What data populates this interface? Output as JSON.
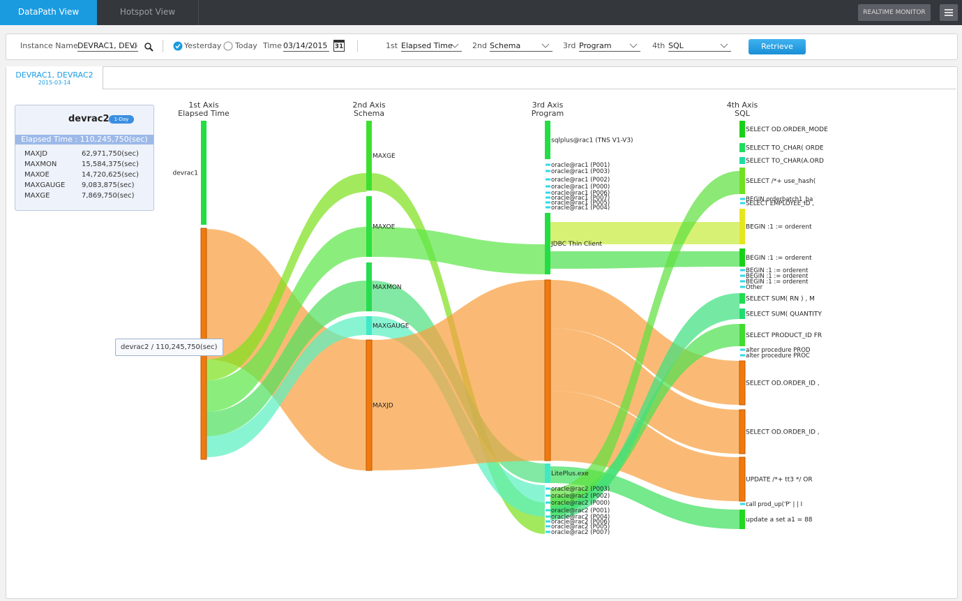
{
  "nav": {
    "tabs": [
      "DataPath View",
      "Hotspot View"
    ],
    "realtime": "REALTIME MONITOR"
  },
  "filters": {
    "instance_label": "Instance Name",
    "instance_value": "DEVRAC1, DEVI",
    "yesterday": "Yesterday",
    "today": "Today",
    "time_label": "Time",
    "date": "03/14/2015",
    "calendar_day": "31",
    "axes": [
      {
        "ordinal": "1st",
        "value": "Elapsed Time"
      },
      {
        "ordinal": "2nd",
        "value": "Schema"
      },
      {
        "ordinal": "3rd",
        "value": "Program"
      },
      {
        "ordinal": "4th",
        "value": "SQL"
      }
    ],
    "retrieve": "Retrieve"
  },
  "tab": {
    "title": "DEVRAC1, DEVRAC2",
    "date": "2015-03-14"
  },
  "card": {
    "name": "devrac2",
    "badge": "1-Day",
    "total": "Elapsed Time : 110,245,750(sec)",
    "rows": [
      [
        "MAXJD",
        "62,971,750(sec)"
      ],
      [
        "MAXMON",
        "15,584,375(sec)"
      ],
      [
        "MAXOE",
        "14,720,625(sec)"
      ],
      [
        "MAXGAUGE",
        "9,083,875(sec)"
      ],
      [
        "MAXGE",
        "7,869,750(sec)"
      ]
    ]
  },
  "tooltip": "devrac2 / 110,245,750(sec)",
  "sankey": {
    "axes": [
      {
        "title": "1st Axis",
        "subtitle": "Elapsed Time",
        "nodes": [
          "devrac1",
          null
        ]
      },
      {
        "title": "2nd Axis",
        "subtitle": "Schema",
        "nodes": [
          "MAXGE",
          "MAXOE",
          "MAXMON",
          "MAXGAUGE",
          "MAXJD"
        ]
      },
      {
        "title": "3rd Axis",
        "subtitle": "Program",
        "nodes": [
          "sqlplus@rac1 (TNS V1-V3)",
          "oracle@rac1 (P001)",
          "oracle@rac1 (P003)",
          "oracle@rac1 (P002)",
          "oracle@rac1 (P000)",
          "oracle@rac1 (P006)",
          "oracle@rac1 (P007)",
          "oracle@rac1 (P005)",
          "oracle@rac1 (P004)",
          "JDBC Thin Client",
          null,
          "LitePlus.exe",
          "oracle@rac2 (P003)",
          "oracle@rac2 (P002)",
          "oracle@rac2 (P000)",
          "oracle@rac2 (P001)",
          "oracle@rac2 (P004)",
          "oracle@rac2 (P006)",
          "oracle@rac2 (P005)",
          "oracle@rac2 (P007)"
        ]
      },
      {
        "title": "4th Axis",
        "subtitle": "SQL",
        "nodes": [
          "SELECT OD.ORDER_MODE",
          "SELECT TO_CHAR( ORDE",
          "SELECT TO_CHAR(A.ORD",
          "SELECT /*+ use_hash(",
          "BEGIN orderbatch1_ba",
          "SELECT EMPLOYEE_ID ,",
          "BEGIN :1 := orderent",
          "BEGIN :1 := orderent",
          "BEGIN :1 := orderent",
          "BEGIN :1 := orderent",
          "BEGIN :1 := orderent",
          "Other",
          "SELECT SUM( RN ) , M",
          "SELECT SUM( QUANTITY",
          "SELECT PRODUCT_ID FR",
          "alter procedure PROD",
          "alter procedure PROC",
          "SELECT OD.ORDER_ID ,",
          "SELECT OD.ORDER_ID ,",
          "UPDATE /*+ tt3 */ OR",
          "call prod_up('P' | | I",
          "update a set a1 = 88"
        ]
      }
    ]
  }
}
